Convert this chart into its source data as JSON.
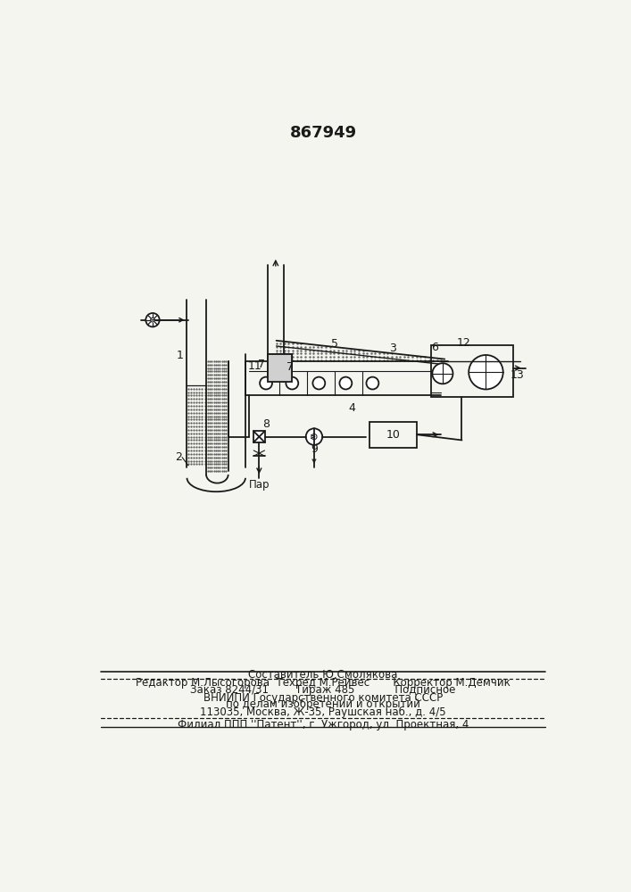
{
  "title": "867949",
  "bg_color": "#f5f5f0",
  "line_color": "#1a1a1a",
  "footer": {
    "line1": "Составитель Ю.Смолякова",
    "line2": "Редактор М.Лысогорова  Техред М.Рейвес       Корректор М.Демчик",
    "line3": "Заказ 8244/31        Тираж 485            Подписное",
    "line4": "ВНИИПИ Государственного комитета СССР",
    "line5": "по делам изобретений и открытий",
    "line6": "113035, Москва, Ж-35, Раушская наб., д. 4/5",
    "line7": "Филиал ППП ''Патент'', г. Ужгород, ул. Проектная, 4"
  }
}
